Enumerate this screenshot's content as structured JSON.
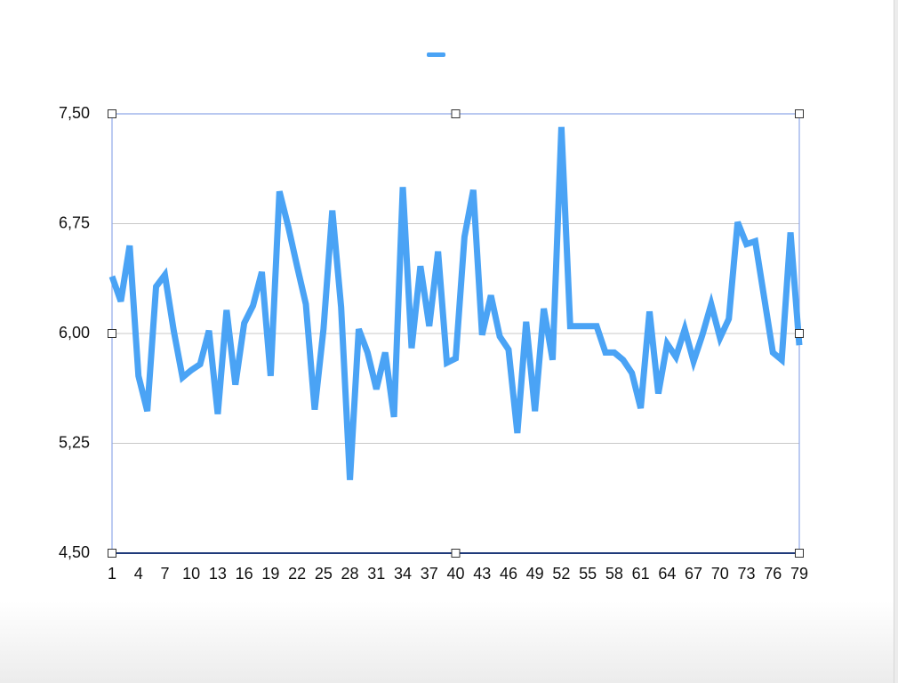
{
  "chart_data": {
    "type": "line",
    "categories": [
      "1",
      null,
      null,
      "4",
      null,
      null,
      "7",
      null,
      null,
      "10",
      null,
      null,
      "13",
      null,
      null,
      "16",
      null,
      null,
      "19",
      null,
      null,
      "22",
      null,
      null,
      "25",
      null,
      null,
      "28",
      null,
      null,
      "31",
      null,
      null,
      "34",
      null,
      null,
      "37",
      null,
      null,
      "40",
      null,
      null,
      "43",
      null,
      null,
      "46",
      null,
      null,
      "49",
      null,
      null,
      "52",
      null,
      null,
      "55",
      null,
      null,
      "58",
      null,
      null,
      "61",
      null,
      null,
      "64",
      null,
      null,
      "67",
      null,
      null,
      "70",
      null,
      null,
      "73",
      null,
      null,
      "76",
      null,
      null,
      "79"
    ],
    "series": [
      {
        "color": "#4aa3f5",
        "values": [
          6.39,
          6.22,
          6.6,
          5.71,
          5.47,
          6.32,
          6.4,
          6.02,
          5.7,
          5.75,
          5.79,
          6.02,
          5.45,
          6.16,
          5.65,
          6.07,
          6.19,
          6.42,
          5.71,
          6.97,
          6.73,
          6.46,
          6.2,
          5.48,
          6.03,
          6.84,
          6.18,
          5.0,
          6.03,
          5.87,
          5.62,
          5.87,
          5.43,
          7.0,
          5.9,
          6.46,
          6.05,
          6.56,
          5.8,
          5.83,
          6.66,
          6.98,
          5.99,
          6.26,
          5.98,
          5.89,
          5.32,
          6.08,
          5.47,
          6.17,
          5.82,
          7.41,
          6.05,
          6.05,
          6.05,
          6.05,
          5.87,
          5.87,
          5.82,
          5.73,
          5.49,
          6.15,
          5.59,
          5.93,
          5.84,
          6.03,
          5.81,
          5.99,
          6.2,
          5.97,
          6.1,
          6.76,
          6.61,
          6.63,
          6.25,
          5.87,
          5.82,
          6.69,
          5.92
        ]
      }
    ],
    "ylim": [
      4.5,
      7.5
    ],
    "yticks": [
      {
        "value": 4.5,
        "label": "4,50"
      },
      {
        "value": 5.25,
        "label": "5,25"
      },
      {
        "value": 6.0,
        "label": "6,00"
      },
      {
        "value": 6.75,
        "label": "6,75"
      },
      {
        "value": 7.5,
        "label": "7,50"
      }
    ],
    "grid": true
  }
}
